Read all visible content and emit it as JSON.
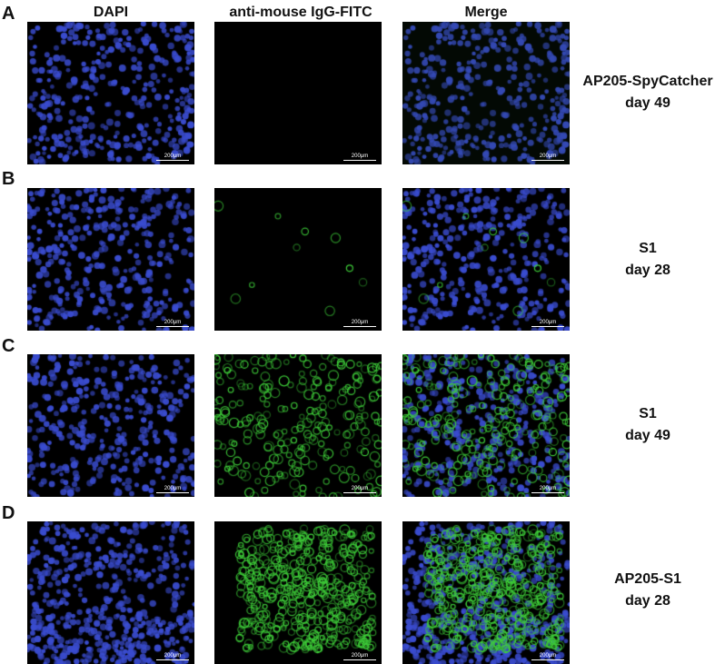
{
  "columns": [
    "DAPI",
    "anti-mouse IgG-FITC",
    "Merge"
  ],
  "rows": [
    {
      "letter": "A",
      "label_line1": "AP205-SpyCatcher",
      "label_line2": "day 49",
      "fitc_level": 0.0
    },
    {
      "letter": "B",
      "label_line1": "S1",
      "label_line2": "day 28",
      "fitc_level": 0.02
    },
    {
      "letter": "C",
      "label_line1": "S1",
      "label_line2": "day 49",
      "fitc_level": 0.45
    },
    {
      "letter": "D",
      "label_line1": "AP205-S1",
      "label_line2": "day 28",
      "fitc_level": 0.85
    }
  ],
  "scale_bar": "200μm",
  "colors": {
    "dapi": "#3a4ccf",
    "fitc": "#3fd03a",
    "background": "#000000"
  }
}
